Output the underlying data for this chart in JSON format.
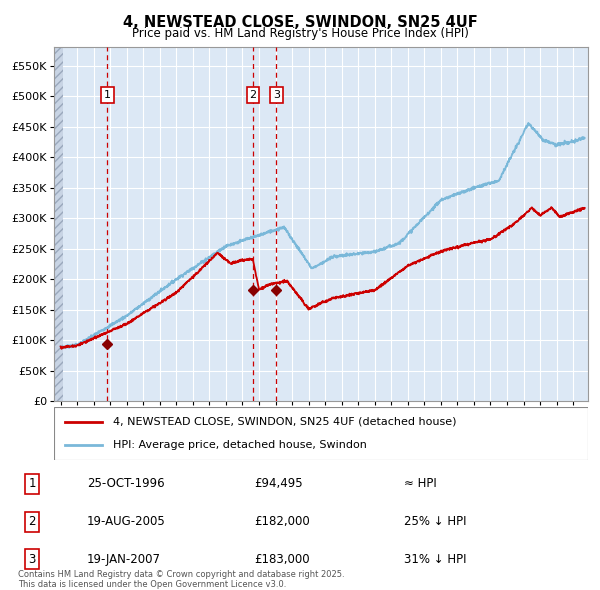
{
  "title": "4, NEWSTEAD CLOSE, SWINDON, SN25 4UF",
  "subtitle": "Price paid vs. HM Land Registry's House Price Index (HPI)",
  "legend_line1": "4, NEWSTEAD CLOSE, SWINDON, SN25 4UF (detached house)",
  "legend_line2": "HPI: Average price, detached house, Swindon",
  "footer": "Contains HM Land Registry data © Crown copyright and database right 2025.\nThis data is licensed under the Open Government Licence v3.0.",
  "hpi_color": "#7ab8d9",
  "price_color": "#cc0000",
  "bg_color": "#dce8f5",
  "grid_color": "#ffffff",
  "dashed_line_color": "#cc0000",
  "sale_marker_color": "#880000",
  "ylim": [
    0,
    580000
  ],
  "yticks": [
    0,
    50000,
    100000,
    150000,
    200000,
    250000,
    300000,
    350000,
    400000,
    450000,
    500000,
    550000
  ],
  "ytick_labels": [
    "£0",
    "£50K",
    "£100K",
    "£150K",
    "£200K",
    "£250K",
    "£300K",
    "£350K",
    "£400K",
    "£450K",
    "£500K",
    "£550K"
  ],
  "xmin": 1993.6,
  "xmax": 2025.9,
  "sale_dates": [
    1996.82,
    2005.63,
    2007.05
  ],
  "sale_prices": [
    94495,
    182000,
    183000
  ],
  "sale_labels": [
    "1",
    "2",
    "3"
  ],
  "table_rows": [
    [
      "1",
      "25-OCT-1996",
      "£94,495",
      "≈ HPI"
    ],
    [
      "2",
      "19-AUG-2005",
      "£182,000",
      "25% ↓ HPI"
    ],
    [
      "3",
      "19-JAN-2007",
      "£183,000",
      "31% ↓ HPI"
    ]
  ]
}
